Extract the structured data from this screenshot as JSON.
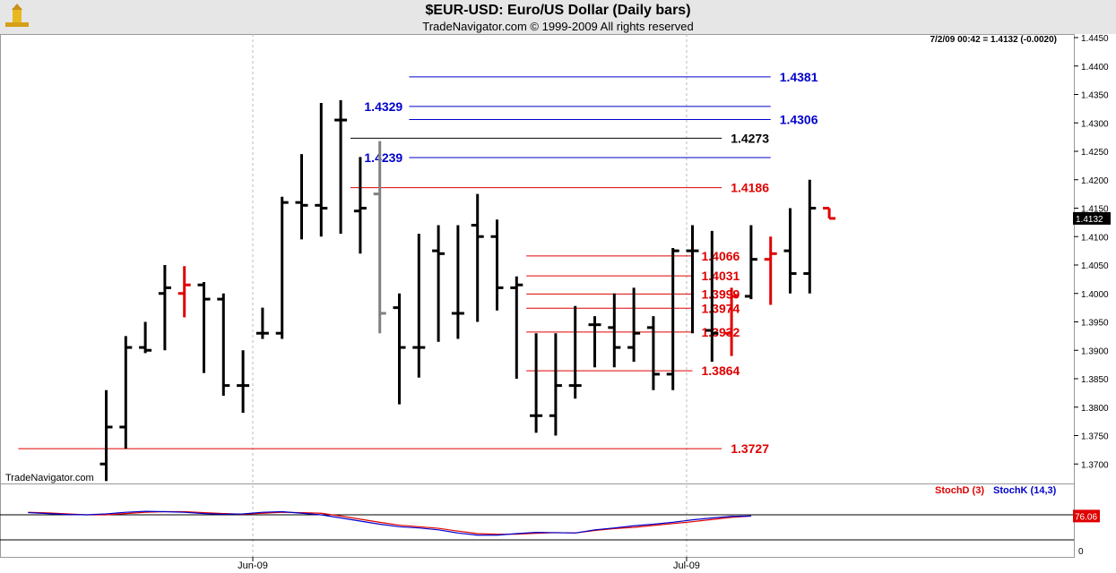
{
  "header": {
    "title": "$EUR-USD:  Euro/US Dollar  (Daily bars)",
    "subtitle": "TradeNavigator.com © 1999-2009 All rights reserved"
  },
  "quote": "7/2/09 00:42 = 1.4132 (-0.0020)",
  "watermark": "TradeNavigator.com",
  "colors": {
    "up": "#000000",
    "down": "#e00000",
    "gray": "#808080",
    "blue_level": "#0000cc",
    "red_level": "#e00000",
    "stochD": "#e00000",
    "stochK": "#0000cc"
  },
  "chart_data": [
    {
      "type": "ohlc",
      "x_labels": [
        "Jun-09",
        "Jul-09"
      ],
      "y_ticks": [
        "1.4450",
        "1.4400",
        "1.4350",
        "1.4300",
        "1.4250",
        "1.4200",
        "1.4150",
        "1.4100",
        "1.4050",
        "1.4000",
        "1.3950",
        "1.3900",
        "1.3850",
        "1.3800",
        "1.3750",
        "1.3700"
      ],
      "ylim": [
        1.367,
        1.4465
      ],
      "last_price": "1.4132",
      "bars": [
        {
          "o": 1.37,
          "h": 1.383,
          "l": 1.367,
          "c": 1.3765,
          "color": "up"
        },
        {
          "o": 1.3765,
          "h": 1.3925,
          "l": 1.3727,
          "c": 1.3905,
          "color": "up"
        },
        {
          "o": 1.3905,
          "h": 1.395,
          "l": 1.3895,
          "c": 1.39,
          "color": "up"
        },
        {
          "o": 1.4,
          "h": 1.405,
          "l": 1.39,
          "c": 1.401,
          "color": "up"
        },
        {
          "o": 1.4,
          "h": 1.4048,
          "l": 1.3958,
          "c": 1.4015,
          "color": "down"
        },
        {
          "o": 1.4015,
          "h": 1.402,
          "l": 1.386,
          "c": 1.399,
          "color": "up"
        },
        {
          "o": 1.399,
          "h": 1.4,
          "l": 1.382,
          "c": 1.3838,
          "color": "up"
        },
        {
          "o": 1.3838,
          "h": 1.39,
          "l": 1.379,
          "c": 1.3838,
          "color": "up"
        },
        {
          "o": 1.393,
          "h": 1.3975,
          "l": 1.392,
          "c": 1.393,
          "color": "up"
        },
        {
          "o": 1.393,
          "h": 1.417,
          "l": 1.392,
          "c": 1.416,
          "color": "up"
        },
        {
          "o": 1.416,
          "h": 1.4245,
          "l": 1.4095,
          "c": 1.4155,
          "color": "up"
        },
        {
          "o": 1.4155,
          "h": 1.4335,
          "l": 1.41,
          "c": 1.415,
          "color": "up"
        },
        {
          "o": 1.4305,
          "h": 1.434,
          "l": 1.4105,
          "c": 1.4305,
          "color": "up"
        },
        {
          "o": 1.4145,
          "h": 1.424,
          "l": 1.407,
          "c": 1.415,
          "color": "up"
        },
        {
          "o": 1.4175,
          "h": 1.4268,
          "l": 1.393,
          "c": 1.3965,
          "color": "gray"
        },
        {
          "o": 1.3975,
          "h": 1.4,
          "l": 1.3805,
          "c": 1.3905,
          "color": "up"
        },
        {
          "o": 1.3905,
          "h": 1.4105,
          "l": 1.3852,
          "c": 1.3905,
          "color": "up"
        },
        {
          "o": 1.4075,
          "h": 1.412,
          "l": 1.3915,
          "c": 1.407,
          "color": "up"
        },
        {
          "o": 1.3965,
          "h": 1.412,
          "l": 1.392,
          "c": 1.3965,
          "color": "up"
        },
        {
          "o": 1.412,
          "h": 1.4175,
          "l": 1.395,
          "c": 1.41,
          "color": "up"
        },
        {
          "o": 1.41,
          "h": 1.413,
          "l": 1.397,
          "c": 1.401,
          "color": "up"
        },
        {
          "o": 1.401,
          "h": 1.403,
          "l": 1.385,
          "c": 1.4015,
          "color": "up"
        },
        {
          "o": 1.3785,
          "h": 1.393,
          "l": 1.3755,
          "c": 1.3785,
          "color": "up"
        },
        {
          "o": 1.3785,
          "h": 1.393,
          "l": 1.375,
          "c": 1.3838,
          "color": "up"
        },
        {
          "o": 1.3838,
          "h": 1.3978,
          "l": 1.3815,
          "c": 1.3838,
          "color": "up"
        },
        {
          "o": 1.3945,
          "h": 1.396,
          "l": 1.387,
          "c": 1.3945,
          "color": "up"
        },
        {
          "o": 1.394,
          "h": 1.4,
          "l": 1.387,
          "c": 1.3905,
          "color": "up"
        },
        {
          "o": 1.3905,
          "h": 1.401,
          "l": 1.388,
          "c": 1.393,
          "color": "up"
        },
        {
          "o": 1.394,
          "h": 1.396,
          "l": 1.383,
          "c": 1.3858,
          "color": "up"
        },
        {
          "o": 1.3858,
          "h": 1.408,
          "l": 1.383,
          "c": 1.4075,
          "color": "up"
        },
        {
          "o": 1.4075,
          "h": 1.412,
          "l": 1.393,
          "c": 1.4075,
          "color": "up"
        },
        {
          "o": 1.3935,
          "h": 1.411,
          "l": 1.388,
          "c": 1.393,
          "color": "up"
        },
        {
          "o": 1.393,
          "h": 1.401,
          "l": 1.389,
          "c": 1.3995,
          "color": "down"
        },
        {
          "o": 1.3995,
          "h": 1.412,
          "l": 1.399,
          "c": 1.406,
          "color": "up"
        },
        {
          "o": 1.406,
          "h": 1.41,
          "l": 1.398,
          "c": 1.407,
          "color": "down"
        },
        {
          "o": 1.4075,
          "h": 1.415,
          "l": 1.4,
          "c": 1.4035,
          "color": "up"
        },
        {
          "o": 1.4035,
          "h": 1.42,
          "l": 1.4,
          "c": 1.415,
          "color": "up"
        },
        {
          "o": 1.415,
          "h": 1.415,
          "l": 1.4132,
          "c": 1.4132,
          "color": "down"
        }
      ],
      "levels": [
        {
          "label": "1.4381",
          "value": 1.4381,
          "color": "blue_level",
          "start_bar": 15.5,
          "end_bar": 34,
          "label_side": "right"
        },
        {
          "label": "1.4329",
          "value": 1.4329,
          "color": "blue_level",
          "start_bar": 15.5,
          "end_bar": 34,
          "label_side": "left"
        },
        {
          "label": "1.4306",
          "value": 1.4306,
          "color": "blue_level",
          "start_bar": 15.5,
          "end_bar": 34,
          "label_side": "right"
        },
        {
          "label": "1.4273",
          "value": 1.4273,
          "color": "up",
          "start_bar": 12.5,
          "end_bar": 31.5,
          "label_side": "right"
        },
        {
          "label": "1.4239",
          "value": 1.4239,
          "color": "blue_level",
          "start_bar": 15.5,
          "end_bar": 34,
          "label_side": "left"
        },
        {
          "label": "1.4186",
          "value": 1.4186,
          "color": "red_level",
          "start_bar": 12.5,
          "end_bar": 31.5,
          "label_side": "right"
        },
        {
          "label": "1.4066",
          "value": 1.4066,
          "color": "red_level",
          "start_bar": 21.5,
          "end_bar": 30,
          "label_side": "right"
        },
        {
          "label": "1.4031",
          "value": 1.4031,
          "color": "red_level",
          "start_bar": 21.5,
          "end_bar": 30,
          "label_side": "right"
        },
        {
          "label": "1.3999",
          "value": 1.3999,
          "color": "red_level",
          "start_bar": 21.5,
          "end_bar": 30,
          "label_side": "right"
        },
        {
          "label": "1.3974",
          "value": 1.3974,
          "color": "red_level",
          "start_bar": 21.5,
          "end_bar": 30,
          "label_side": "right"
        },
        {
          "label": "1.3932",
          "value": 1.3932,
          "color": "red_level",
          "start_bar": 21.5,
          "end_bar": 30,
          "label_side": "right"
        },
        {
          "label": "1.3864",
          "value": 1.3864,
          "color": "red_level",
          "start_bar": 21.5,
          "end_bar": 30,
          "label_side": "right"
        },
        {
          "label": "1.3727",
          "value": 1.3727,
          "color": "red_level",
          "start_bar": -4.5,
          "end_bar": 31.5,
          "label_side": "right"
        }
      ]
    },
    {
      "type": "line",
      "series": [
        {
          "name": "StochD (3)",
          "color": "stochD",
          "values": [
            88,
            86,
            83,
            80,
            80,
            84,
            88,
            90,
            90,
            87,
            84,
            82,
            85,
            88,
            87,
            85,
            76,
            66,
            56,
            47,
            42,
            37,
            28,
            20,
            18,
            18,
            21,
            23,
            22,
            30,
            36,
            40,
            46,
            52,
            58,
            65,
            72,
            76
          ]
        },
        {
          "name": "StochK (14,3)",
          "color": "stochK",
          "values": [
            87,
            84,
            81,
            80,
            83,
            88,
            91,
            90,
            88,
            84,
            82,
            83,
            88,
            90,
            85,
            80,
            70,
            60,
            50,
            42,
            38,
            32,
            22,
            15,
            15,
            20,
            24,
            23,
            22,
            32,
            38,
            45,
            50,
            56,
            64,
            70,
            75,
            76.06
          ]
        }
      ],
      "ylim": [
        0,
        100
      ],
      "y_ticks": [
        "0"
      ],
      "last_value": "76.06"
    }
  ]
}
